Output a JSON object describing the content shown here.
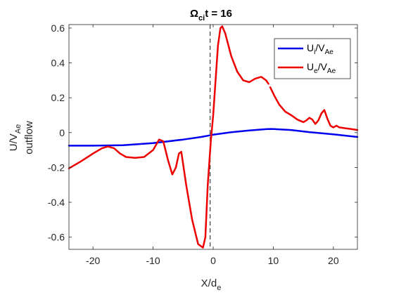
{
  "chart_data": {
    "type": "line",
    "title": {
      "main": "Ω",
      "sub": "ci",
      "rest": "t = 16"
    },
    "xlabel": {
      "main": "X/d",
      "sub": "e"
    },
    "ylabel": {
      "main": "U/V",
      "sub": "Ae",
      "line2": "outflow"
    },
    "xlim": [
      -24,
      24
    ],
    "ylim": [
      -0.67,
      0.62
    ],
    "xticks": [
      -20,
      -10,
      0,
      10,
      20
    ],
    "xtick_labels": [
      "-20",
      "-10",
      "0",
      "10",
      "20"
    ],
    "yticks": [
      -0.6,
      -0.4,
      -0.2,
      0,
      0.2,
      0.4,
      0.6
    ],
    "ytick_labels": [
      "-0.6",
      "-0.4",
      "-0.2",
      "0",
      "0.2",
      "0.4",
      "0.6"
    ],
    "grid": false,
    "legend_position": "top-right",
    "reference_line": {
      "x": -0.5,
      "style": "dashed"
    },
    "series": [
      {
        "name": "Ui/VAe",
        "legend_main": "U",
        "legend_sub1": "i",
        "legend_mid": "/V",
        "legend_sub2": "Ae",
        "color": "#0000ee",
        "x": [
          -24,
          -20,
          -15,
          -10,
          -5,
          -2,
          0,
          3,
          6,
          9,
          9.6,
          10.1,
          13,
          16,
          20,
          24
        ],
        "y": [
          -0.075,
          -0.075,
          -0.072,
          -0.06,
          -0.04,
          -0.025,
          -0.012,
          0.002,
          0.012,
          0.02,
          0.021,
          0.02,
          0.015,
          0.003,
          -0.01,
          -0.025
        ]
      },
      {
        "name": "Ue/VAe",
        "legend_main": "U",
        "legend_sub1": "e",
        "legend_mid": "/V",
        "legend_sub2": "Ae",
        "color": "#ee0000",
        "x": [
          -24,
          -22,
          -20,
          -18.5,
          -17.5,
          -16.5,
          -15.5,
          -14.5,
          -13,
          -11.5,
          -10,
          -9,
          -8.3,
          -7.5,
          -6.8,
          -6.2,
          -5.7,
          -5.3,
          -4.5,
          -3.5,
          -2.5,
          -1.7,
          -1.3,
          -0.9,
          -0.4,
          0,
          0.4,
          0.8,
          1.2,
          1.5,
          2,
          3,
          4,
          5,
          6,
          7,
          8,
          8.8,
          9.2,
          9.5,
          10.2,
          11,
          12,
          13,
          14,
          15,
          15.5,
          16,
          16.5,
          17,
          17.5,
          18,
          18.5,
          19,
          19.5,
          20,
          20.5,
          21,
          22,
          23,
          24
        ],
        "y": [
          -0.205,
          -0.165,
          -0.12,
          -0.09,
          -0.08,
          -0.09,
          -0.12,
          -0.14,
          -0.145,
          -0.14,
          -0.1,
          -0.04,
          -0.05,
          -0.16,
          -0.24,
          -0.2,
          -0.12,
          -0.11,
          -0.3,
          -0.5,
          -0.64,
          -0.66,
          -0.6,
          -0.3,
          -0.05,
          0.1,
          0.3,
          0.5,
          0.6,
          0.61,
          0.57,
          0.44,
          0.35,
          0.3,
          0.29,
          0.31,
          0.32,
          0.3,
          0.28,
          0.26,
          0.21,
          0.16,
          0.12,
          0.1,
          0.075,
          0.06,
          0.07,
          0.085,
          0.075,
          0.05,
          0.07,
          0.11,
          0.13,
          0.08,
          0.04,
          0.03,
          0.04,
          0.03,
          0.025,
          0.02,
          0.015
        ],
        "gap_after_x": 9.2
      }
    ]
  }
}
